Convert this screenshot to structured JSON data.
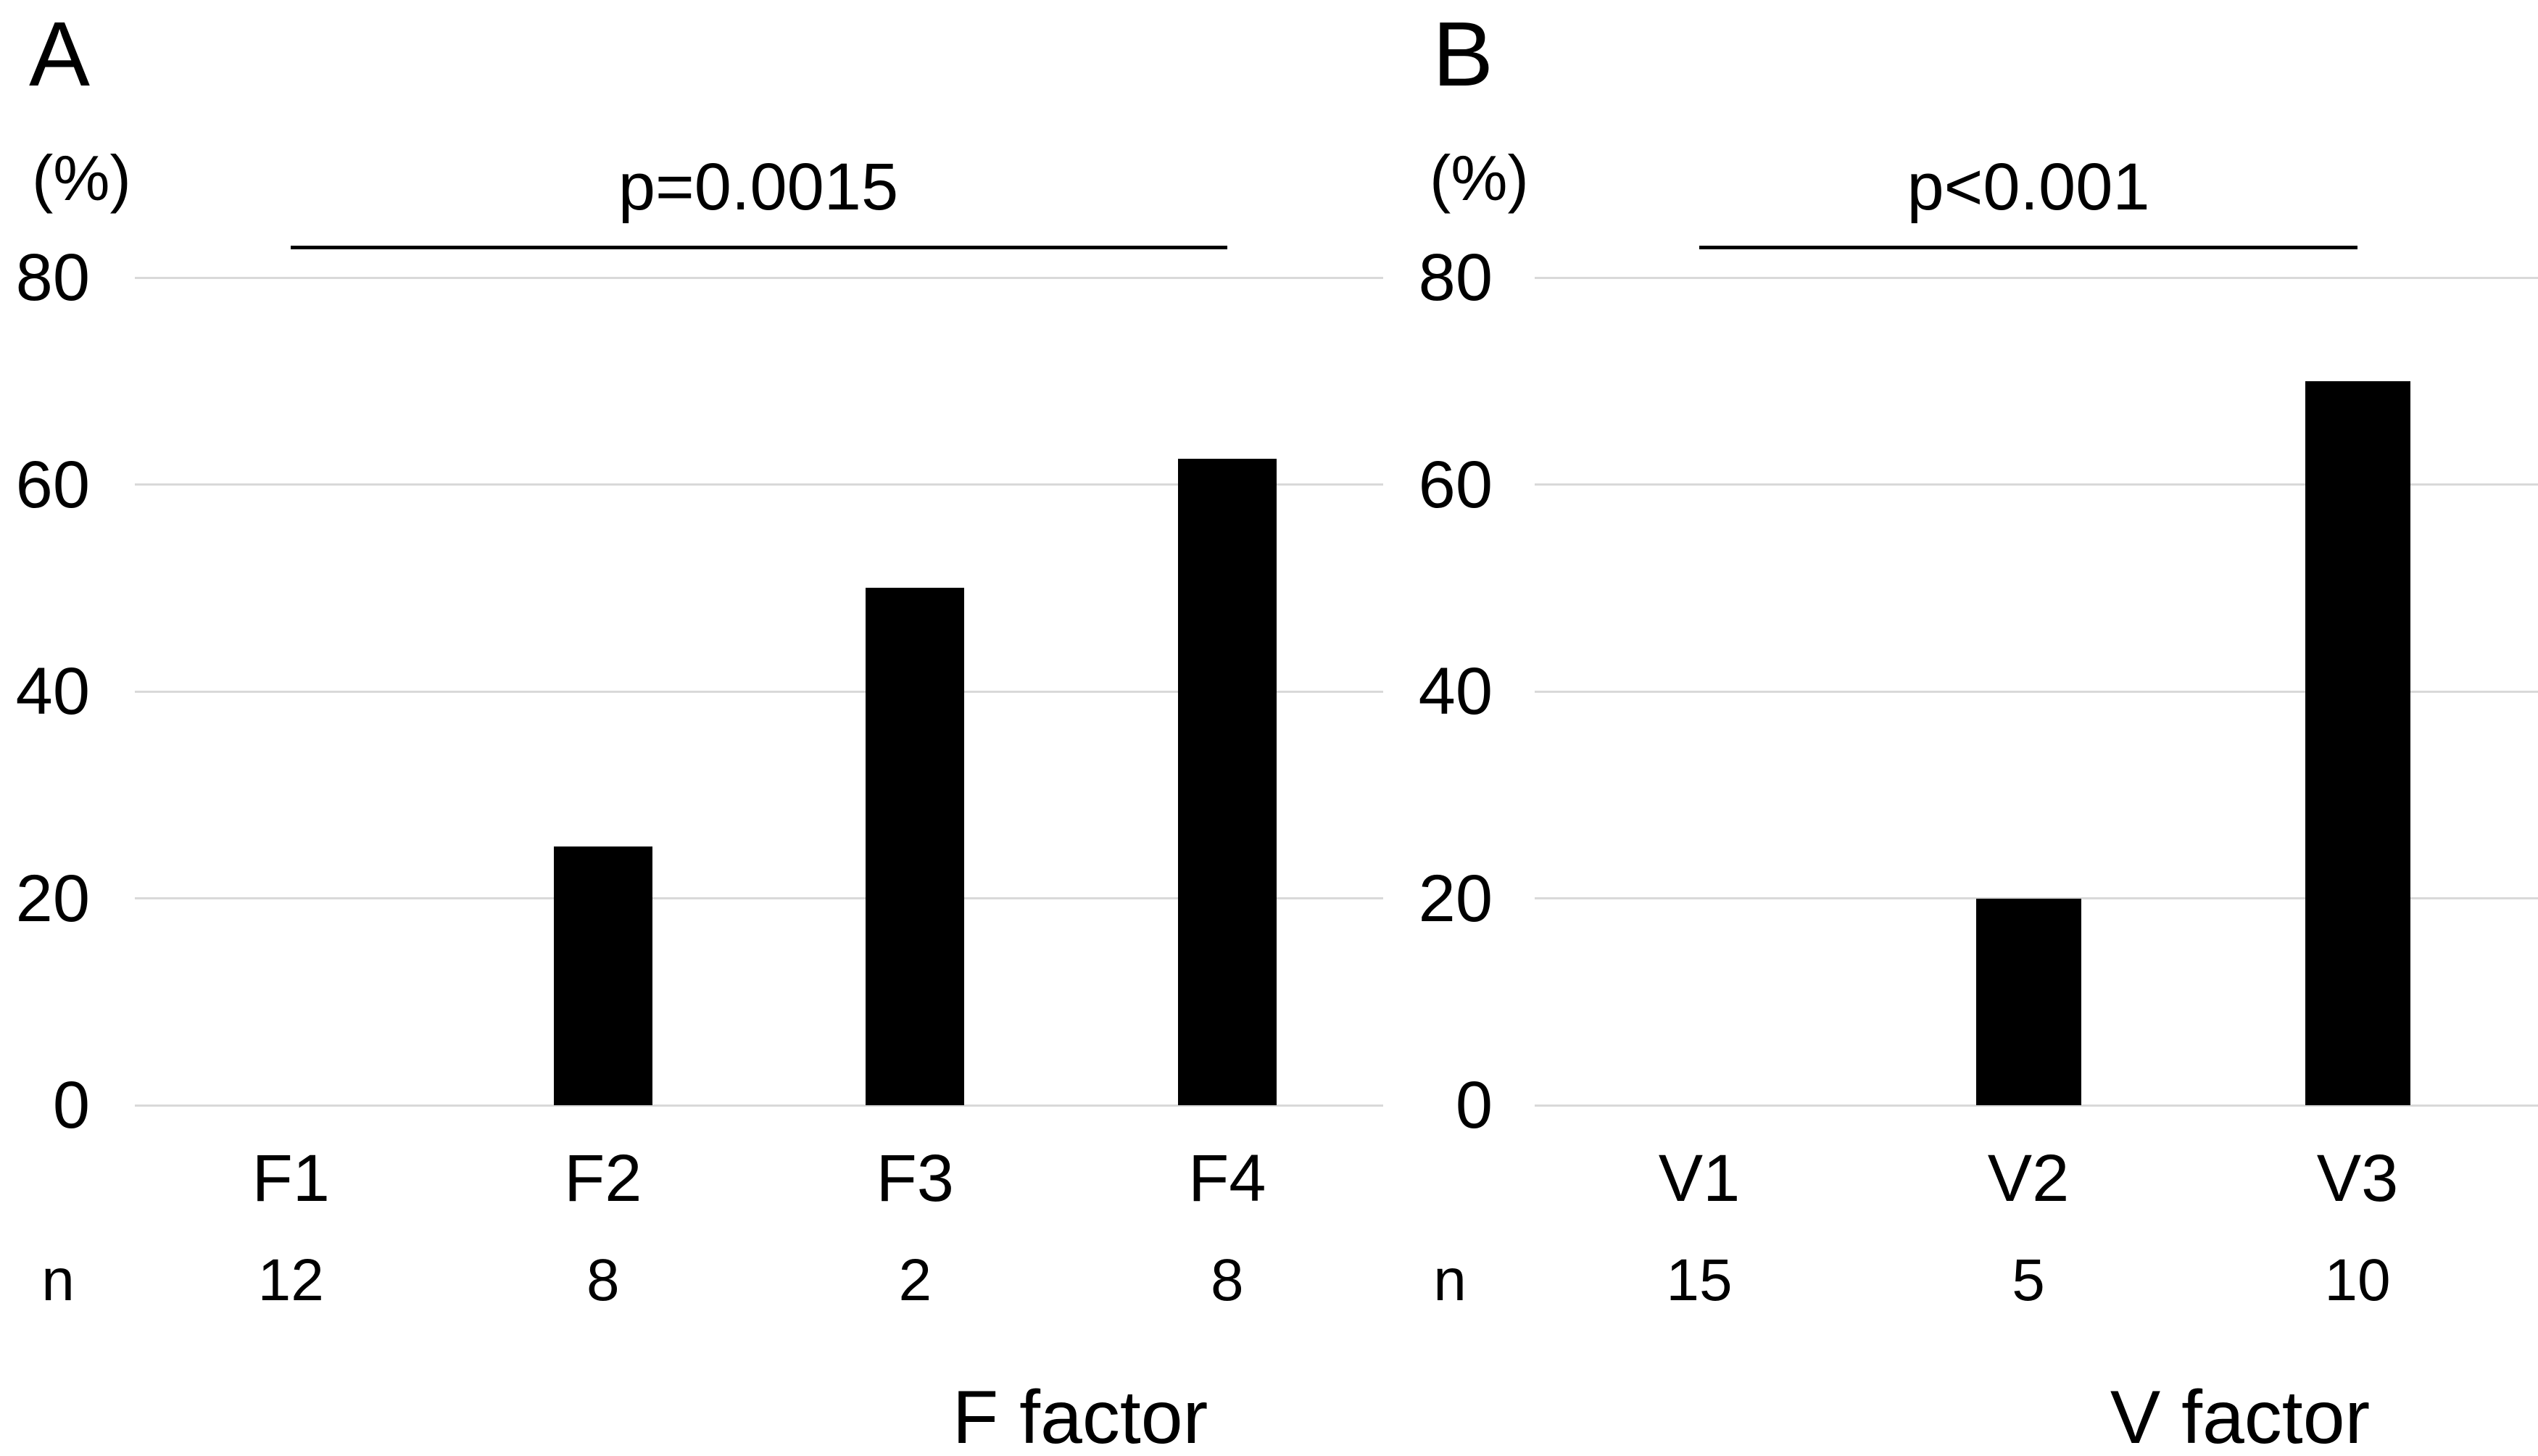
{
  "figure": {
    "background": "#ffffff",
    "bar_color": "#000000",
    "gridline_color": "#d9d9d9",
    "sig_line_color": "#000000"
  },
  "chart_data": [
    {
      "type": "bar",
      "panel": "A",
      "title": "p=0.0015",
      "p_label": "p=0.0015",
      "ylabel": "(%)",
      "xlabel": "F factor",
      "n_header": "n",
      "categories": [
        "F1",
        "F2",
        "F3",
        "F4"
      ],
      "values": [
        0,
        25,
        50,
        62.5
      ],
      "n_values": [
        12,
        8,
        2,
        8
      ],
      "y_ticks": [
        80,
        60,
        40,
        20,
        0
      ],
      "ylim": [
        0,
        80
      ],
      "grid": true,
      "legend": "none",
      "significance": {
        "from": "F1",
        "to": "F4",
        "label": "p=0.0015"
      }
    },
    {
      "type": "bar",
      "panel": "B",
      "title": "p<0.001",
      "p_label": "p<0.001",
      "ylabel": "(%)",
      "xlabel": "V factor",
      "n_header": "n",
      "categories": [
        "V1",
        "V2",
        "V3"
      ],
      "values": [
        0,
        20,
        70
      ],
      "n_values": [
        15,
        5,
        10
      ],
      "y_ticks": [
        80,
        60,
        40,
        20,
        0
      ],
      "ylim": [
        0,
        80
      ],
      "grid": true,
      "legend": "none",
      "significance": {
        "from": "V1",
        "to": "V3",
        "label": "p<0.001"
      }
    }
  ]
}
